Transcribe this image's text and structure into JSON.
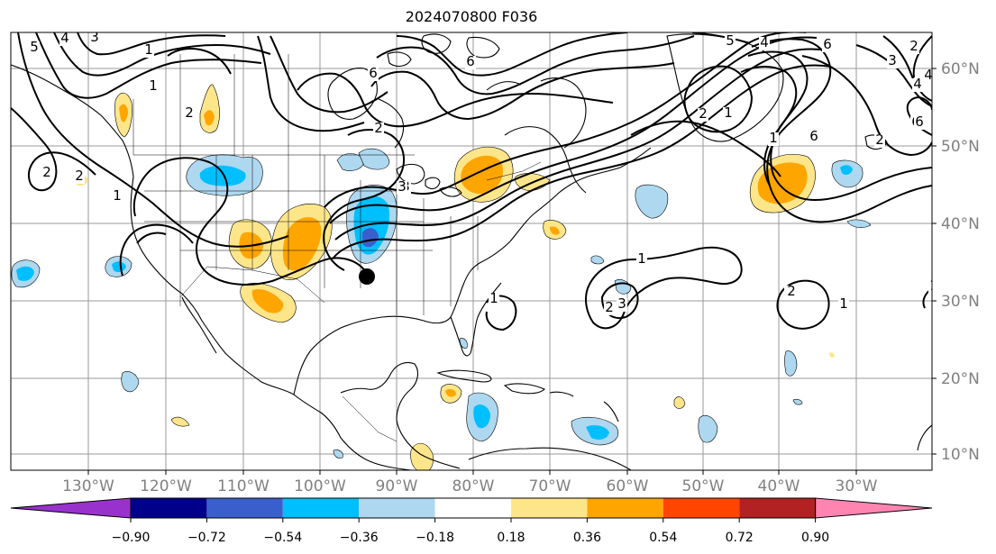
{
  "title": "2024070800 F036",
  "longitude_labels": [
    "130°W",
    "120°W",
    "110°W",
    "100°W",
    "90°W",
    "80°W",
    "70°W",
    "60°W",
    "50°W",
    "40°W",
    "30°W"
  ],
  "latitude_labels": [
    "60°N",
    "50°N",
    "40°N",
    "30°N",
    "20°N",
    "10°N"
  ],
  "colorbar": {
    "tick_labels": [
      "−0.90",
      "−0.72",
      "−0.54",
      "−0.36",
      "−0.18",
      "0.18",
      "0.36",
      "0.54",
      "0.72",
      "0.90"
    ],
    "colors": [
      "#9932cc",
      "#00008b",
      "#3a5fcd",
      "#00bfff",
      "#add8f0",
      "#ffffff",
      "#fde68a",
      "#ffa500",
      "#ff4500",
      "#b22222",
      "#ff85b0"
    ]
  },
  "contour_labels": [
    "5",
    "4",
    "3",
    "1",
    "2",
    "1",
    "2",
    "6",
    "3",
    "2",
    "3",
    "6",
    "1",
    "2",
    "1",
    "5",
    "6",
    "4",
    "6",
    "3",
    "2",
    "4",
    "2",
    "1",
    "2",
    "6",
    "6",
    "4",
    "1",
    "2",
    "3",
    "1",
    "2",
    "1",
    "2",
    "1"
  ],
  "marker": "location-dot"
}
